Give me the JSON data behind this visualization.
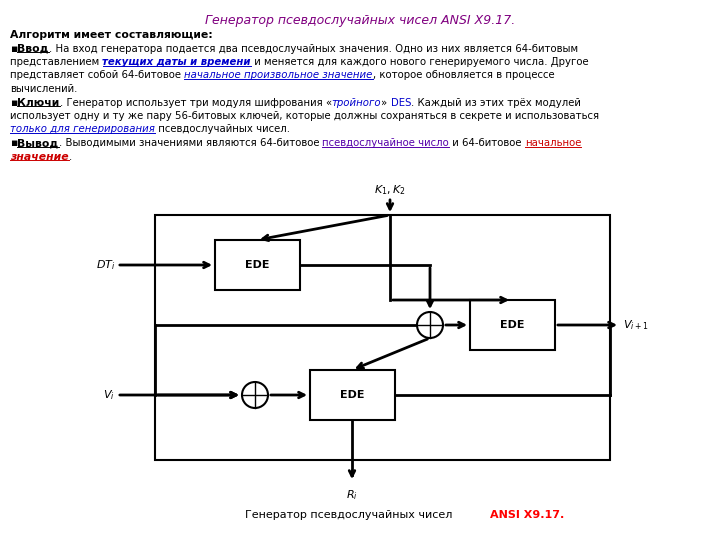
{
  "title": "Генератор псевдослучайных чисел ANSI X9.17.",
  "title_color": "#800080",
  "bg_color": "#ffffff",
  "bottom_caption_normal": "Генератор псевдослучайных чисел ",
  "bottom_caption_bold": "ANSI X9.17.",
  "bottom_caption_color": "#000000",
  "bottom_caption_bold_color": "#ff0000"
}
